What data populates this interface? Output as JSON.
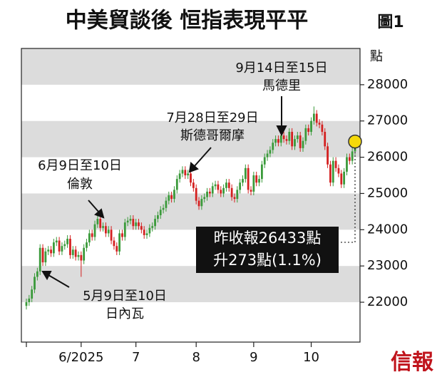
{
  "chart_data": {
    "type": "candlestick",
    "title": "中美貿談後 恒指表現平平",
    "figure_label": "圖1",
    "y_label": "點",
    "source": "信報",
    "callout": [
      "昨收報26433點",
      "升273點(1.1%)"
    ],
    "annotations": [
      {
        "lines": [
          "9月14日至15日",
          "馬德里"
        ]
      },
      {
        "lines": [
          "7月28日至29日",
          "斯德哥爾摩"
        ]
      },
      {
        "lines": [
          "6月9日至10日",
          "倫敦"
        ]
      },
      {
        "lines": [
          "5月9日至10日",
          "日內瓦"
        ]
      }
    ],
    "up_color": "#3a9a3a",
    "down_color": "#d42020",
    "ylim": [
      20900,
      29000
    ],
    "yticks": [
      22000,
      23000,
      24000,
      25000,
      26000,
      27000,
      28000
    ],
    "categories": [
      null,
      null,
      null,
      null,
      null,
      null,
      null,
      null,
      null,
      null,
      null,
      null,
      null,
      null,
      null,
      null,
      null,
      null,
      null,
      null,
      "6/2025",
      null,
      null,
      null,
      null,
      null,
      null,
      null,
      null,
      null,
      null,
      null,
      null,
      null,
      null,
      null,
      null,
      null,
      null,
      null,
      "7",
      null,
      null,
      null,
      null,
      null,
      null,
      null,
      null,
      null,
      null,
      null,
      null,
      null,
      null,
      null,
      null,
      null,
      null,
      null,
      null,
      null,
      "8",
      null,
      null,
      null,
      null,
      null,
      null,
      null,
      null,
      null,
      null,
      null,
      null,
      null,
      null,
      null,
      null,
      null,
      null,
      null,
      null,
      "9",
      null,
      null,
      null,
      null,
      null,
      null,
      null,
      null,
      null,
      null,
      null,
      null,
      null,
      null,
      null,
      null,
      null,
      null,
      null,
      null,
      "10",
      null,
      null,
      null,
      null,
      null,
      null,
      null,
      null,
      null,
      null,
      null,
      null,
      null,
      null,
      null,
      null
    ],
    "open": [
      21900,
      22000,
      22100,
      22350,
      22700,
      22850,
      23500,
      23100,
      23400,
      23450,
      23350,
      23650,
      23700,
      23400,
      23550,
      23600,
      23750,
      23300,
      23450,
      23250,
      23300,
      23150,
      23500,
      23650,
      23900,
      23800,
      24150,
      24300,
      24050,
      24100,
      23900,
      24000,
      23700,
      23550,
      23400,
      23900,
      23800,
      24200,
      24250,
      24300,
      24100,
      24200,
      24100,
      24000,
      23850,
      23900,
      24050,
      24100,
      24300,
      24400,
      24550,
      24600,
      24800,
      24950,
      24850,
      25100,
      25400,
      25550,
      25650,
      25500,
      25550,
      25300,
      25150,
      24800,
      24650,
      24850,
      24900,
      25050,
      25000,
      25200,
      25250,
      25100,
      25000,
      25150,
      25300,
      25150,
      24900,
      24850,
      25100,
      25300,
      25400,
      25700,
      25100,
      25050,
      25500,
      25300,
      25400,
      25800,
      26000,
      26100,
      26200,
      26400,
      26500,
      26400,
      26600,
      26500,
      26450,
      26700,
      26300,
      26500,
      26600,
      26250,
      26450,
      26800,
      26700,
      27000,
      27200,
      26950,
      26900,
      26700,
      26300,
      25800,
      25300,
      25900,
      25700,
      25550,
      25250,
      25600,
      26000,
      25900,
      26160
    ],
    "high": [
      22100,
      22200,
      22450,
      22800,
      22950,
      23600,
      23600,
      23500,
      23550,
      23550,
      23750,
      23800,
      23800,
      23650,
      23700,
      23850,
      23850,
      23550,
      23550,
      23400,
      23400,
      23600,
      23750,
      24000,
      24000,
      24250,
      24400,
      24400,
      24200,
      24200,
      24100,
      24100,
      23800,
      23650,
      24000,
      24000,
      24300,
      24350,
      24400,
      24400,
      24300,
      24300,
      24200,
      24100,
      24000,
      24150,
      24200,
      24400,
      24500,
      24650,
      24700,
      24900,
      25050,
      25050,
      25200,
      25500,
      25650,
      25750,
      25750,
      25650,
      25650,
      25400,
      25250,
      24900,
      24950,
      25000,
      25150,
      25150,
      25300,
      25350,
      25350,
      25200,
      25250,
      25400,
      25400,
      25250,
      25000,
      25200,
      25400,
      25500,
      25800,
      25800,
      25200,
      25600,
      25600,
      25500,
      25900,
      26100,
      26200,
      26300,
      26500,
      26600,
      26600,
      26700,
      26700,
      26600,
      26800,
      26800,
      26600,
      26700,
      26700,
      26550,
      26900,
      26900,
      27100,
      27400,
      27300,
      27050,
      27000,
      26800,
      26400,
      25900,
      26000,
      26000,
      25800,
      25650,
      25700,
      26100,
      26100,
      26260,
      26533
    ],
    "low": [
      21800,
      21900,
      22000,
      22250,
      22600,
      22750,
      23000,
      23000,
      23300,
      23250,
      23250,
      23550,
      23300,
      23300,
      23450,
      23500,
      23200,
      23200,
      23150,
      23150,
      22700,
      23050,
      23400,
      23550,
      23700,
      23700,
      24050,
      23950,
      23950,
      23800,
      23800,
      23600,
      23450,
      23300,
      23300,
      23700,
      23700,
      24100,
      24150,
      24000,
      24000,
      24000,
      23900,
      23750,
      23750,
      23800,
      23950,
      24000,
      24200,
      24300,
      24450,
      24500,
      24700,
      24750,
      24750,
      25000,
      25300,
      25450,
      25400,
      25400,
      25200,
      25050,
      24700,
      24550,
      24550,
      24750,
      24800,
      24900,
      24900,
      25100,
      25000,
      24900,
      24900,
      25050,
      25050,
      24800,
      24750,
      24750,
      25000,
      25200,
      25300,
      25000,
      24950,
      24950,
      25200,
      25200,
      25300,
      25700,
      25900,
      26000,
      26100,
      26300,
      26300,
      26300,
      26400,
      26350,
      26350,
      26200,
      26200,
      26400,
      26150,
      26150,
      26350,
      26600,
      26600,
      26900,
      26850,
      26800,
      26600,
      26200,
      25700,
      25200,
      25200,
      25600,
      25450,
      25150,
      25150,
      25500,
      25800,
      25800,
      26060
    ],
    "close": [
      22000,
      22100,
      22350,
      22700,
      22850,
      23500,
      23100,
      23400,
      23450,
      23350,
      23650,
      23700,
      23400,
      23550,
      23600,
      23750,
      23300,
      23450,
      23250,
      23300,
      23150,
      23500,
      23650,
      23900,
      23800,
      24150,
      24300,
      24050,
      24100,
      23900,
      24000,
      23700,
      23550,
      23400,
      23900,
      23800,
      24200,
      24250,
      24300,
      24100,
      24200,
      24100,
      24000,
      23850,
      23900,
      24050,
      24100,
      24300,
      24400,
      24550,
      24600,
      24800,
      24950,
      24850,
      25100,
      25400,
      25550,
      25650,
      25500,
      25550,
      25300,
      25150,
      24800,
      24650,
      24850,
      24900,
      25050,
      25000,
      25200,
      25250,
      25100,
      25000,
      25150,
      25300,
      25150,
      24900,
      24850,
      25100,
      25300,
      25400,
      25700,
      25100,
      25050,
      25500,
      25300,
      25400,
      25800,
      26000,
      26100,
      26200,
      26400,
      26500,
      26400,
      26600,
      26500,
      26450,
      26700,
      26300,
      26500,
      26600,
      26250,
      26450,
      26800,
      26700,
      27000,
      27200,
      26950,
      26900,
      26700,
      26300,
      25800,
      25300,
      25900,
      25700,
      25550,
      25250,
      25600,
      26000,
      25900,
      26160,
      26433
    ]
  }
}
